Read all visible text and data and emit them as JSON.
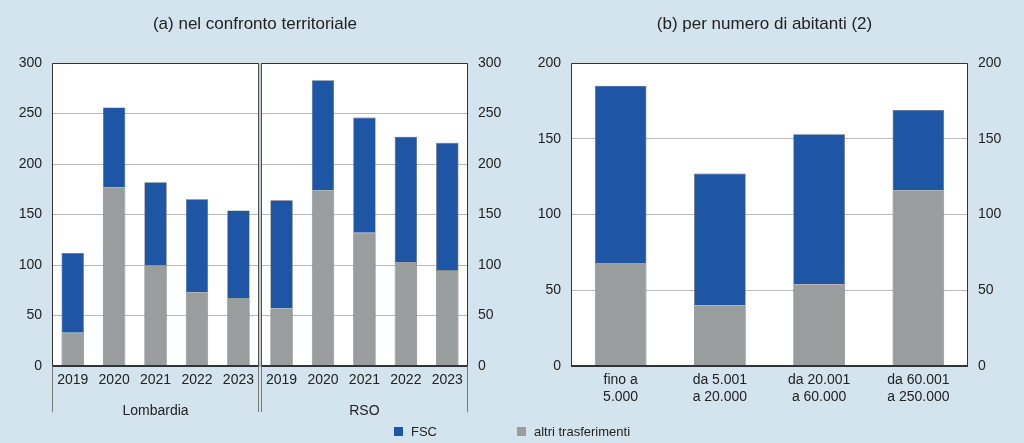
{
  "chart_data": [
    {
      "type": "bar",
      "title": "(a) nel confronto territoriale",
      "xlabel": "Lombardia",
      "stacked": true,
      "categories": [
        "2019",
        "2020",
        "2021",
        "2022",
        "2023"
      ],
      "series": [
        {
          "name": "altri trasferimenti",
          "color": "#9a9d9e",
          "values": [
            33,
            177,
            100,
            73,
            67
          ]
        },
        {
          "name": "FSC",
          "color": "#1f55a5",
          "values": [
            79,
            79,
            82,
            92,
            87
          ]
        }
      ],
      "ylim": [
        0,
        300
      ],
      "yticks": [
        0,
        50,
        100,
        150,
        200,
        250,
        300
      ],
      "grid": "y",
      "legend": "bottom"
    },
    {
      "type": "bar",
      "xlabel": "RSO",
      "stacked": true,
      "categories": [
        "2019",
        "2020",
        "2021",
        "2022",
        "2023"
      ],
      "series": [
        {
          "name": "altri trasferimenti",
          "color": "#9a9d9e",
          "axis": "y2",
          "values": [
            57,
            174,
            132,
            103,
            95
          ]
        },
        {
          "name": "FSC",
          "color": "#1f55a5",
          "axis": "y2",
          "values": [
            107,
            109,
            114,
            124,
            126
          ]
        }
      ],
      "y2lim": [
        0,
        300
      ],
      "y2ticks": [
        0,
        50,
        100,
        150,
        200,
        250,
        300
      ],
      "grid": "y",
      "legend": "bottom"
    },
    {
      "type": "bar",
      "title": "(b) per numero di abitanti (2)",
      "stacked": true,
      "categories": [
        "fino a\n5.000",
        "da 5.001\na 20.000",
        "da 20.001\na 60.000",
        "da 60.001\na 250.000"
      ],
      "series": [
        {
          "name": "altri trasferimenti",
          "color": "#9a9d9e",
          "values": [
            68,
            40,
            54,
            116
          ]
        },
        {
          "name": "FSC",
          "color": "#1f55a5",
          "values": [
            117,
            87,
            99,
            53
          ]
        }
      ],
      "ylim": [
        0,
        200
      ],
      "yticks": [
        0,
        50,
        100,
        150,
        200
      ],
      "y2lim": [
        0,
        200
      ],
      "y2ticks": [
        0,
        50,
        100,
        150,
        200
      ],
      "grid": "y",
      "legend": "bottom"
    }
  ]
}
